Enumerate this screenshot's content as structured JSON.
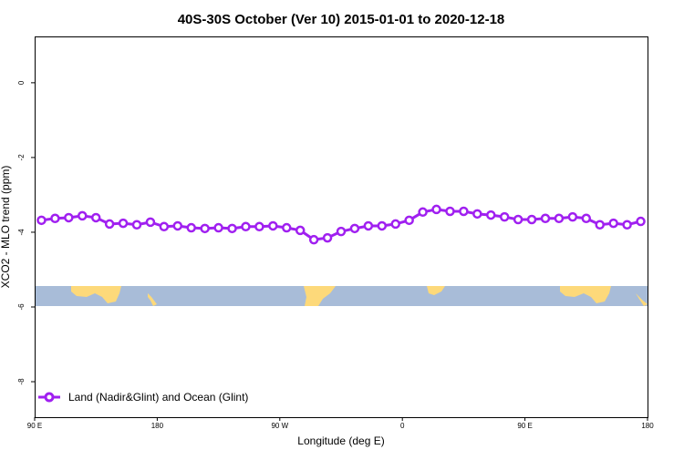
{
  "chart_data": {
    "type": "line",
    "title": "40S-30S October (Ver 10)   2015-01-01 to 2020-12-18",
    "xlabel": "Longitude (deg E)",
    "ylabel": "XCO2 - MLO trend (ppm)",
    "xlim": [
      90,
      540
    ],
    "ylim": [
      -8.95,
      1.24
    ],
    "xticks": [
      {
        "v": 90,
        "label": "90 E"
      },
      {
        "v": 180,
        "label": "180"
      },
      {
        "v": 270,
        "label": "90 W"
      },
      {
        "v": 360,
        "label": "0"
      },
      {
        "v": 450,
        "label": "90 E"
      },
      {
        "v": 540,
        "label": "180"
      }
    ],
    "yticks": [
      {
        "v": 0,
        "label": "0"
      },
      {
        "v": -2,
        "label": "-2"
      },
      {
        "v": -4,
        "label": "-4"
      },
      {
        "v": -6,
        "label": "-6"
      },
      {
        "v": -8,
        "label": "-8"
      }
    ],
    "legend": {
      "label": "Land (Nadir&Glint) and Ocean (Glint)",
      "placement": "bottom-left"
    },
    "color": "#a020f0",
    "series": [
      {
        "name": "Land (Nadir&Glint) and Ocean (Glint)",
        "x": [
          95,
          105,
          115,
          125,
          135,
          145,
          155,
          165,
          175,
          185,
          195,
          205,
          215,
          225,
          235,
          245,
          255,
          265,
          275,
          285,
          295,
          305,
          315,
          325,
          335,
          345,
          355,
          365,
          375,
          385,
          395,
          405,
          415,
          425,
          435,
          445,
          455,
          465,
          475,
          485,
          495,
          505,
          515,
          525,
          535
        ],
        "y": [
          -3.68,
          -3.63,
          -3.61,
          -3.56,
          -3.61,
          -3.78,
          -3.76,
          -3.8,
          -3.73,
          -3.85,
          -3.83,
          -3.88,
          -3.9,
          -3.88,
          -3.9,
          -3.85,
          -3.85,
          -3.83,
          -3.88,
          -3.95,
          -4.2,
          -4.15,
          -3.98,
          -3.9,
          -3.83,
          -3.83,
          -3.78,
          -3.68,
          -3.46,
          -3.39,
          -3.44,
          -3.44,
          -3.51,
          -3.54,
          -3.59,
          -3.66,
          -3.66,
          -3.63,
          -3.63,
          -3.59,
          -3.63,
          -3.8,
          -3.76,
          -3.8,
          -3.71
        ]
      }
    ]
  }
}
